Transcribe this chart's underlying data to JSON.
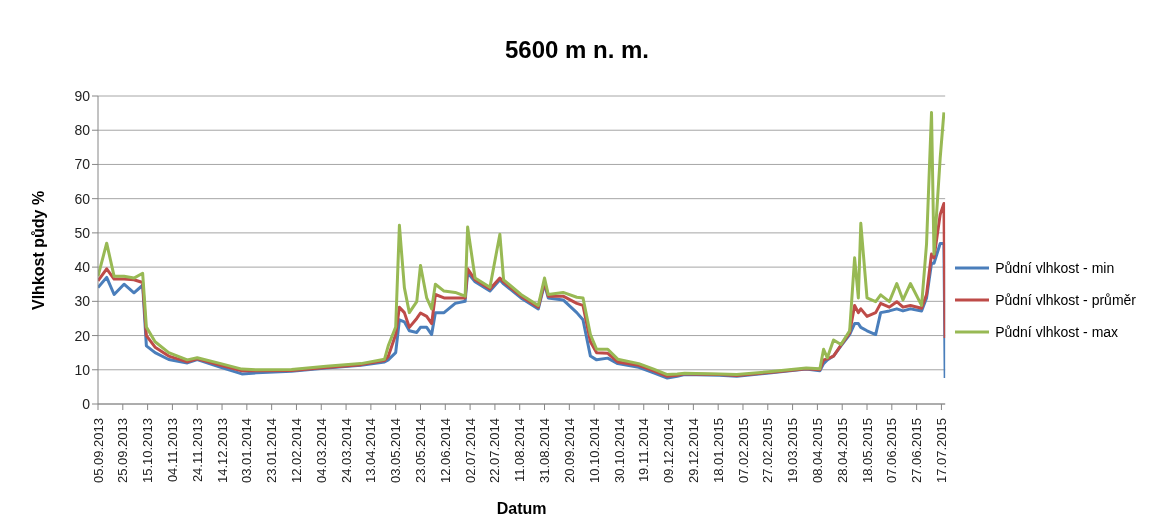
{
  "chart_data": {
    "type": "line",
    "title": "5600 m n. m.",
    "xlabel": "Datum",
    "ylabel": "Vlhkost půdy %",
    "x": [
      "2013-09-05",
      "2013-09-12",
      "2013-09-18",
      "2013-09-26",
      "2013-10-04",
      "2013-10-11",
      "2013-10-14",
      "2013-10-21",
      "2013-11-01",
      "2013-11-16",
      "2013-11-24",
      "2013-12-13",
      "2013-12-30",
      "2014-01-11",
      "2014-02-08",
      "2014-03-08",
      "2014-04-05",
      "2014-04-24",
      "2014-04-27",
      "2014-05-03",
      "2014-05-06",
      "2014-05-10",
      "2014-05-14",
      "2014-05-20",
      "2014-05-23",
      "2014-05-28",
      "2014-06-01",
      "2014-06-04",
      "2014-06-11",
      "2014-06-20",
      "2014-06-28",
      "2014-06-30",
      "2014-07-06",
      "2014-07-18",
      "2014-07-26",
      "2014-07-29",
      "2014-08-12",
      "2014-08-26",
      "2014-08-31",
      "2014-09-03",
      "2014-09-15",
      "2014-09-26",
      "2014-10-01",
      "2014-10-07",
      "2014-10-12",
      "2014-10-21",
      "2014-10-29",
      "2014-11-15",
      "2014-11-27",
      "2014-12-08",
      "2014-12-16",
      "2014-12-22",
      "2015-01-19",
      "2015-02-02",
      "2015-03-02",
      "2015-03-30",
      "2015-04-10",
      "2015-04-13",
      "2015-04-16",
      "2015-04-21",
      "2015-04-27",
      "2015-05-04",
      "2015-05-08",
      "2015-05-11",
      "2015-05-13",
      "2015-05-18",
      "2015-05-25",
      "2015-05-29",
      "2015-06-05",
      "2015-06-11",
      "2015-06-16",
      "2015-06-22",
      "2015-07-01",
      "2015-07-05",
      "2015-07-09",
      "2015-07-11",
      "2015-07-16",
      "2015-07-19",
      "2015-07-20"
    ],
    "series": [
      {
        "name": "Půdní vlhkost - min",
        "color": "#4a7ebb",
        "values": [
          34,
          37,
          32,
          35,
          32.5,
          34.7,
          17,
          15,
          13,
          12,
          13,
          10.7,
          8.8,
          9.1,
          9.6,
          10.5,
          11.3,
          12.3,
          12.9,
          15,
          24.6,
          24,
          21.4,
          20.9,
          22.4,
          22.4,
          20.3,
          26.7,
          26.7,
          29.4,
          30,
          38.4,
          35.7,
          33,
          36.3,
          35.1,
          31,
          27.8,
          35.1,
          31,
          30.4,
          26.7,
          24.6,
          14,
          12.9,
          13.4,
          11.8,
          10.7,
          9.1,
          7.6,
          8.1,
          8.6,
          8.4,
          8.1,
          9.1,
          10.2,
          9.7,
          11.8,
          12.9,
          14,
          17,
          20.3,
          23.5,
          23.5,
          22.4,
          21.4,
          20.3,
          26.7,
          27.2,
          27.8,
          27.2,
          27.8,
          27.2,
          31,
          41.1,
          41.1,
          46.9,
          46.9,
          7.6
        ]
      },
      {
        "name": "Půdní vlhkost - průměr",
        "color": "#be4b48",
        "values": [
          36,
          39.5,
          36.5,
          36.5,
          36.3,
          35.5,
          20,
          16.6,
          14,
          12.3,
          13.2,
          11.3,
          9.7,
          9.7,
          9.8,
          10.7,
          11.5,
          12.7,
          13.9,
          20.3,
          28.3,
          26.7,
          22.4,
          25,
          26.6,
          25.6,
          23.5,
          32,
          31,
          31,
          31,
          39.5,
          36.3,
          33.6,
          36.8,
          35.7,
          31.5,
          28.3,
          35.7,
          31.5,
          31.5,
          29.4,
          28.8,
          18.2,
          15,
          14.8,
          12.3,
          11.3,
          9.7,
          8.1,
          8.4,
          8.8,
          8.6,
          8.3,
          9.3,
          10.3,
          10,
          12.9,
          13.2,
          14,
          17.2,
          20.8,
          28.8,
          26.7,
          27.8,
          25.6,
          26.7,
          29.4,
          28.3,
          29.9,
          28.3,
          28.8,
          28,
          32,
          43.8,
          42.7,
          55.4,
          58.6,
          19.3
        ]
      },
      {
        "name": "Půdní vlhkost - max",
        "color": "#98b954",
        "values": [
          37.3,
          47,
          37.3,
          37.3,
          36.8,
          38.2,
          22.5,
          18.2,
          15,
          12.9,
          13.5,
          11.8,
          10.2,
          10,
          10.1,
          11,
          11.8,
          13.1,
          17,
          22.5,
          52.2,
          34,
          26.7,
          29.9,
          40.5,
          31,
          27.8,
          35,
          33,
          32.6,
          31.5,
          51.7,
          36.8,
          34.1,
          49.6,
          36.3,
          32,
          28.8,
          36.8,
          32,
          32.6,
          31.2,
          31,
          20.3,
          16,
          16,
          13.1,
          11.8,
          10.2,
          8.6,
          8.8,
          9,
          8.8,
          8.6,
          9.5,
          10.5,
          10.3,
          16,
          13.5,
          18.7,
          17.4,
          21.4,
          42.7,
          31,
          52.8,
          31,
          29.9,
          31.9,
          29.9,
          35.2,
          30.4,
          35.2,
          28.8,
          46.8,
          85.2,
          43.8,
          71.9,
          85.2,
          null
        ]
      }
    ],
    "xlim": [
      "2013-09-05",
      "2015-07-20"
    ],
    "xticks": [
      {
        "value": "2013-09-05",
        "label": "05.09.2013"
      },
      {
        "value": "2013-09-25",
        "label": "25.09.2013"
      },
      {
        "value": "2013-10-15",
        "label": "15.10.2013"
      },
      {
        "value": "2013-11-04",
        "label": "04.11.2013"
      },
      {
        "value": "2013-11-24",
        "label": "24.11.2013"
      },
      {
        "value": "2013-12-14",
        "label": "14.12.2013"
      },
      {
        "value": "2014-01-03",
        "label": "03.01.2014"
      },
      {
        "value": "2014-01-23",
        "label": "23.01.2014"
      },
      {
        "value": "2014-02-12",
        "label": "12.02.2014"
      },
      {
        "value": "2014-03-04",
        "label": "04.03.2014"
      },
      {
        "value": "2014-03-24",
        "label": "24.03.2014"
      },
      {
        "value": "2014-04-13",
        "label": "13.04.2014"
      },
      {
        "value": "2014-05-03",
        "label": "03.05.2014"
      },
      {
        "value": "2014-05-23",
        "label": "23.05.2014"
      },
      {
        "value": "2014-06-12",
        "label": "12.06.2014"
      },
      {
        "value": "2014-07-02",
        "label": "02.07.2014"
      },
      {
        "value": "2014-07-22",
        "label": "22.07.2014"
      },
      {
        "value": "2014-08-11",
        "label": "11.08.2014"
      },
      {
        "value": "2014-08-31",
        "label": "31.08.2014"
      },
      {
        "value": "2014-09-20",
        "label": "20.09.2014"
      },
      {
        "value": "2014-10-10",
        "label": "10.10.2014"
      },
      {
        "value": "2014-10-30",
        "label": "30.10.2014"
      },
      {
        "value": "2014-11-19",
        "label": "19.11.2014"
      },
      {
        "value": "2014-12-09",
        "label": "09.12.2014"
      },
      {
        "value": "2014-12-29",
        "label": "29.12.2014"
      },
      {
        "value": "2015-01-18",
        "label": "18.01.2015"
      },
      {
        "value": "2015-02-07",
        "label": "07.02.2015"
      },
      {
        "value": "2015-02-27",
        "label": "27.02.2015"
      },
      {
        "value": "2015-03-19",
        "label": "19.03.2015"
      },
      {
        "value": "2015-04-08",
        "label": "08.04.2015"
      },
      {
        "value": "2015-04-28",
        "label": "28.04.2015"
      },
      {
        "value": "2015-05-18",
        "label": "18.05.2015"
      },
      {
        "value": "2015-06-07",
        "label": "07.06.2015"
      },
      {
        "value": "2015-06-27",
        "label": "27.06.2015"
      },
      {
        "value": "2015-07-17",
        "label": "17.07.2015"
      }
    ],
    "ylim": [
      0,
      90
    ],
    "yticks": [
      0,
      10,
      20,
      30,
      40,
      50,
      60,
      70,
      80,
      90
    ],
    "grid": "y",
    "legend": "right"
  }
}
